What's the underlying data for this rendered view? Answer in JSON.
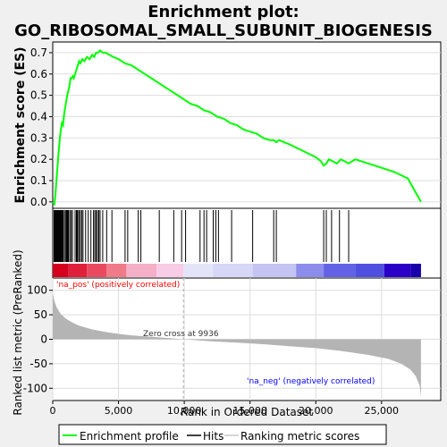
{
  "title_line1": "Enrichment plot:",
  "title_line2": "GO_RIBOSOMAL_SMALL_SUBUNIT_BIOGENESIS",
  "colors": {
    "background": "#f0f0f0",
    "panel": "#ffffff",
    "es_line": "#00ff00",
    "hits": "#000000",
    "metric_fill": "#b4b4b4",
    "pos_label": "#ff0000",
    "neg_label": "#0000ff",
    "zero_line": "#b0b0b0"
  },
  "chart_data": [
    {
      "type": "line",
      "panel": "enrichment-score",
      "ylabel": "Enrichment score (ES)",
      "xlim": [
        0,
        29500
      ],
      "ylim": [
        -0.03,
        0.75
      ],
      "yticks": [
        0.0,
        0.1,
        0.2,
        0.3,
        0.4,
        0.5,
        0.6,
        0.7
      ],
      "ytick_labels": [
        "0.0",
        "0.1",
        "0.2",
        "0.3",
        "0.4",
        "0.5",
        "0.6",
        "0.7"
      ],
      "series": [
        {
          "name": "Enrichment profile",
          "x": [
            0,
            120,
            200,
            260,
            320,
            380,
            440,
            500,
            560,
            620,
            700,
            780,
            860,
            940,
            1020,
            1100,
            1180,
            1260,
            1350,
            1440,
            1520,
            1600,
            1700,
            1800,
            1900,
            2000,
            2100,
            2250,
            2400,
            2600,
            2800,
            3000,
            3150,
            3300,
            3450,
            3600,
            3800,
            4000,
            4300,
            4600,
            5000,
            5500,
            6000,
            6500,
            7000,
            7500,
            8000,
            8500,
            9000,
            9500,
            10000,
            10500,
            11000,
            11500,
            12000,
            12500,
            13000,
            13500,
            14000,
            14500,
            15000,
            15500,
            16000,
            16500,
            16800,
            17000,
            17200,
            18000,
            19000,
            20000,
            20400,
            20600,
            20800,
            21000,
            21300,
            21600,
            21900,
            22200,
            22500,
            23000,
            24000,
            25000,
            26000,
            27000,
            28000
          ],
          "y": [
            0.0,
            -0.01,
            0.03,
            0.08,
            0.13,
            0.18,
            0.23,
            0.27,
            0.31,
            0.34,
            0.37,
            0.36,
            0.41,
            0.44,
            0.47,
            0.5,
            0.52,
            0.54,
            0.58,
            0.58,
            0.59,
            0.58,
            0.6,
            0.62,
            0.64,
            0.66,
            0.65,
            0.67,
            0.66,
            0.68,
            0.67,
            0.69,
            0.68,
            0.7,
            0.7,
            0.71,
            0.7,
            0.7,
            0.69,
            0.68,
            0.67,
            0.65,
            0.64,
            0.62,
            0.6,
            0.58,
            0.56,
            0.54,
            0.52,
            0.5,
            0.48,
            0.46,
            0.45,
            0.43,
            0.42,
            0.4,
            0.39,
            0.37,
            0.36,
            0.34,
            0.33,
            0.32,
            0.3,
            0.29,
            0.29,
            0.28,
            0.29,
            0.27,
            0.24,
            0.21,
            0.19,
            0.17,
            0.18,
            0.2,
            0.19,
            0.18,
            0.2,
            0.19,
            0.18,
            0.2,
            0.18,
            0.16,
            0.14,
            0.11,
            0.0
          ]
        }
      ]
    },
    {
      "type": "scatter",
      "panel": "hits",
      "name": "Hits",
      "x": [
        100,
        150,
        200,
        250,
        300,
        350,
        400,
        450,
        500,
        550,
        600,
        650,
        700,
        750,
        800,
        900,
        1000,
        1050,
        1100,
        1150,
        1200,
        1300,
        1400,
        1500,
        1700,
        1800,
        1850,
        1900,
        2000,
        2100,
        2200,
        2300,
        2500,
        2700,
        2900,
        3100,
        3200,
        3300,
        3400,
        3500,
        3600,
        3800,
        4100,
        4500,
        5500,
        5700,
        6500,
        6700,
        8100,
        9200,
        9800,
        10100,
        11200,
        11500,
        11700,
        12200,
        12400,
        12600,
        13600,
        15200,
        16800,
        17000,
        20600,
        20800,
        21200,
        21800,
        22500
      ]
    },
    {
      "type": "area",
      "panel": "ranked-metric",
      "name": "Ranking metric scores",
      "xlabel": "Rank in Ordered Dataset",
      "ylabel": "Ranked list metric (PreRanked)",
      "xlim": [
        0,
        29500
      ],
      "ylim": [
        -125,
        125
      ],
      "xticks": [
        0,
        5000,
        10000,
        15000,
        20000,
        25000
      ],
      "xtick_labels": [
        "0",
        "5,000",
        "10,000",
        "15,000",
        "20,000",
        "25,000"
      ],
      "yticks": [
        -100,
        -50,
        0,
        50,
        100
      ],
      "ytick_labels": [
        "-100",
        "-50",
        "0",
        "50",
        "100"
      ],
      "x": [
        0,
        100,
        300,
        600,
        1000,
        1500,
        2000,
        3000,
        4000,
        5000,
        6000,
        7000,
        8000,
        9000,
        9936,
        11000,
        12000,
        14000,
        16000,
        18000,
        20000,
        22000,
        24000,
        25500,
        26500,
        27200,
        27600,
        27900,
        28000
      ],
      "values": [
        95,
        80,
        65,
        52,
        42,
        34,
        28,
        20,
        15,
        11,
        8,
        6,
        4,
        2,
        0,
        -2,
        -4,
        -7,
        -10,
        -14,
        -18,
        -24,
        -32,
        -40,
        -50,
        -62,
        -75,
        -95,
        -118
      ]
    }
  ],
  "gradient_bar": {
    "breaks": [
      0,
      1200,
      2600,
      4100,
      5600,
      7900,
      9936,
      12200,
      15200,
      18500,
      20600,
      23000,
      25200,
      27200,
      28000
    ],
    "colors": [
      "#d4001e",
      "#e01f3a",
      "#ea4a60",
      "#f07a88",
      "#f5b0c8",
      "#f8cbe6",
      "#e4e4f8",
      "#d6d6f6",
      "#c4c4f2",
      "#8c8cec",
      "#6262e6",
      "#5050e0",
      "#2a00c8",
      "#1a00aa"
    ]
  },
  "annotations": {
    "pos_label": "'na_pos' (positively correlated)",
    "neg_label": "'na_neg' (negatively correlated)",
    "zero_cross": "Zero cross at 9936",
    "zero_cross_x": 9936
  },
  "legend": {
    "items": [
      "Enrichment profile",
      "Hits",
      "Ranking metric scores"
    ]
  }
}
